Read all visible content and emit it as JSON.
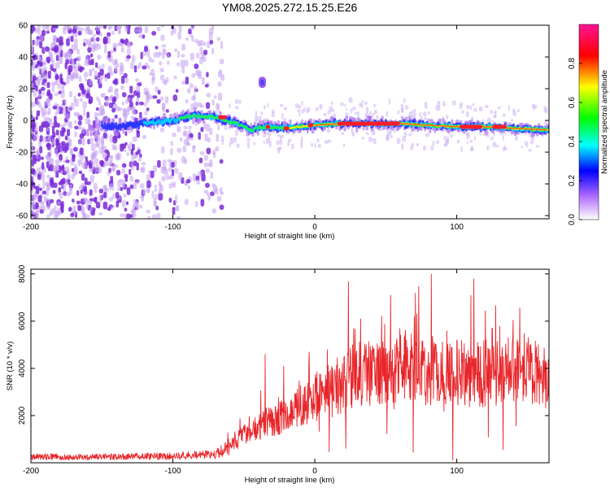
{
  "chart_data": [
    {
      "type": "heatmap",
      "title": "YM08.2025.272.15.25.E26",
      "xlabel": "Height of straight line (km)",
      "ylabel": "Frequency (Hz)",
      "xlim": [
        -200,
        165
      ],
      "ylim": [
        -62,
        60
      ],
      "xticks": [
        -200,
        -100,
        0,
        100
      ],
      "yticks": [
        -60,
        -40,
        -20,
        0,
        20,
        40,
        60
      ],
      "colorbar": {
        "label": "Normalized spectral amplitude",
        "range": [
          0.0,
          1.0
        ],
        "ticks": [
          "0.0",
          "0.2",
          "0.4",
          "0.6",
          "0.8"
        ],
        "colors": [
          "#ffffff",
          "#8a2be2",
          "#0000ff",
          "#00ffff",
          "#00ff00",
          "#ffff00",
          "#ff0000",
          "#ff1493"
        ]
      },
      "ridge": {
        "description_points_km_hz": [
          [
            -155,
            -3
          ],
          [
            -140,
            -4
          ],
          [
            -120,
            -2
          ],
          [
            -100,
            0
          ],
          [
            -85,
            3
          ],
          [
            -70,
            2
          ],
          [
            -55,
            -2
          ],
          [
            -45,
            -6
          ],
          [
            -35,
            -4
          ],
          [
            -20,
            -5
          ],
          [
            -10,
            -4
          ],
          [
            0,
            -3
          ],
          [
            20,
            -2
          ],
          [
            40,
            -2
          ],
          [
            60,
            -2
          ],
          [
            80,
            -3
          ],
          [
            100,
            -4
          ],
          [
            120,
            -4
          ],
          [
            140,
            -5
          ],
          [
            165,
            -6
          ]
        ],
        "secondary_blob_km_hz": [
          -37,
          24
        ]
      }
    },
    {
      "type": "line",
      "xlabel": "Height of straight line (km)",
      "ylabel": "SNR (10 * v/v)",
      "xlim": [
        -200,
        165
      ],
      "ylim": [
        0,
        8200
      ],
      "xticks": [
        -200,
        -100,
        0,
        100
      ],
      "yticks": [
        2000,
        4000,
        6000,
        8000
      ],
      "series": [
        {
          "name": "SNR",
          "color": "#e8262a",
          "envelope_points_km_snr": [
            [
              -200,
              250
            ],
            [
              -150,
              250
            ],
            [
              -100,
              300
            ],
            [
              -70,
              350
            ],
            [
              -60,
              700
            ],
            [
              -50,
              1200
            ],
            [
              -40,
              1500
            ],
            [
              -30,
              1800
            ],
            [
              -20,
              2000
            ],
            [
              -10,
              2400
            ],
            [
              0,
              2800
            ],
            [
              10,
              3000
            ],
            [
              20,
              3400
            ],
            [
              30,
              3800
            ],
            [
              40,
              3800
            ],
            [
              50,
              3700
            ],
            [
              60,
              4200
            ],
            [
              70,
              4000
            ],
            [
              80,
              3900
            ],
            [
              90,
              4000
            ],
            [
              100,
              3900
            ],
            [
              110,
              3700
            ],
            [
              120,
              3800
            ],
            [
              130,
              3800
            ],
            [
              140,
              3900
            ],
            [
              150,
              4000
            ],
            [
              165,
              3600
            ]
          ],
          "peaks_km_snr": [
            [
              -35,
              4600
            ],
            [
              -22,
              4100
            ],
            [
              60,
              5700
            ],
            [
              70,
              6200
            ],
            [
              82,
              8000
            ],
            [
              93,
              5600
            ],
            [
              110,
              7100
            ],
            [
              112,
              7800
            ],
            [
              125,
              5700
            ]
          ]
        }
      ]
    }
  ]
}
